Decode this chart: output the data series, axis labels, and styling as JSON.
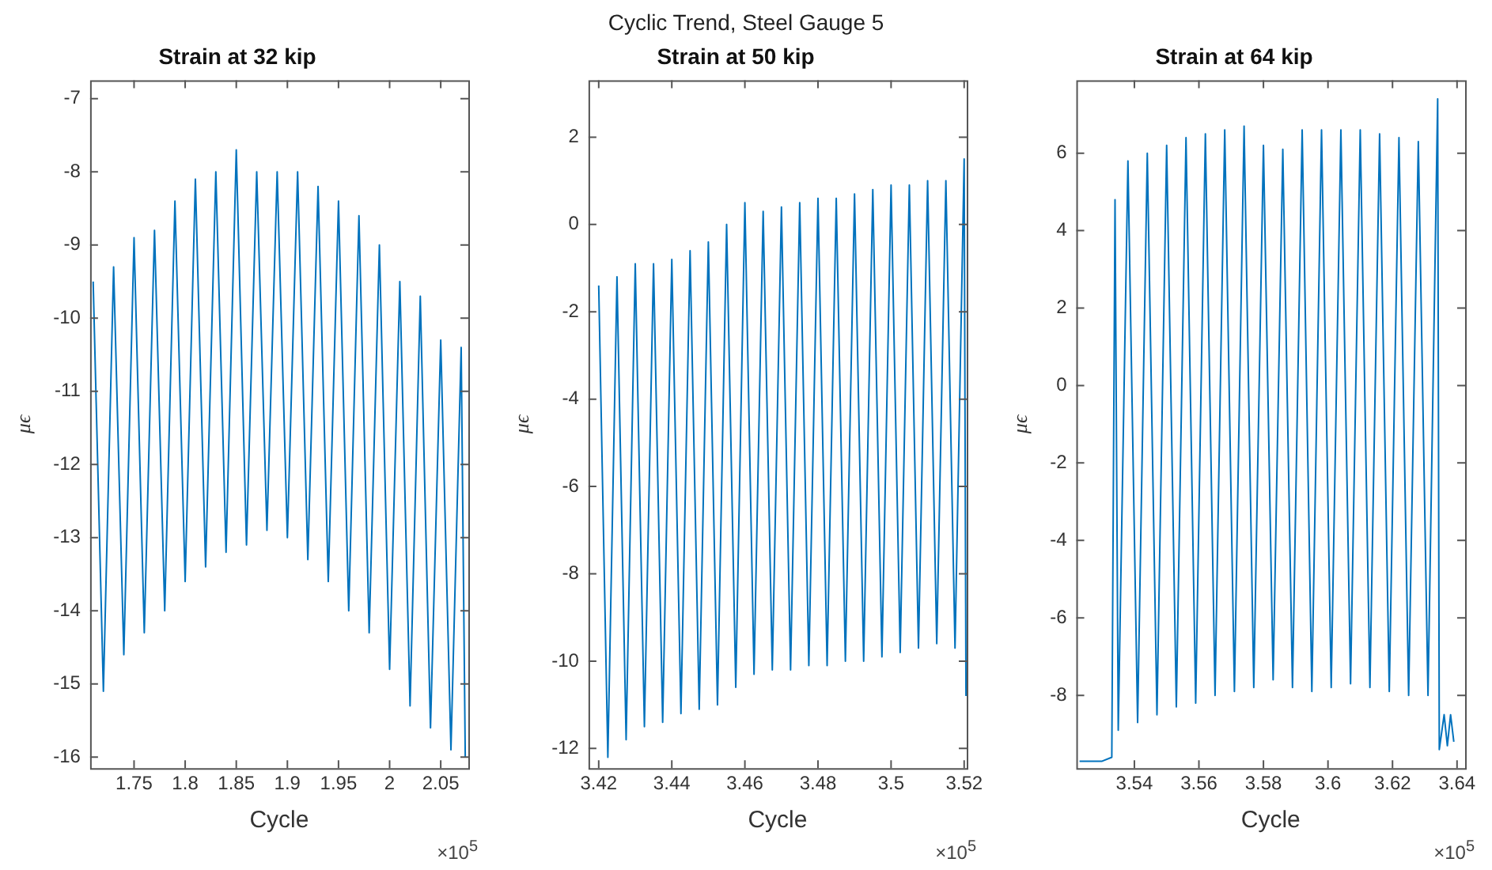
{
  "chart_data": [
    {
      "type": "line",
      "title": "Strain at 32 kip",
      "xlabel": "Cycle",
      "ylabel": "μϵ",
      "annotations": [
        "Cyclic Trend, Steel Gauge 5",
        "×10$^{5}$"
      ],
      "x": [
        1.71,
        1.72,
        1.73,
        1.74,
        1.75,
        1.76,
        1.77,
        1.78,
        1.79,
        1.8,
        1.81,
        1.82,
        1.83,
        1.84,
        1.85,
        1.86,
        1.87,
        1.88,
        1.89,
        1.9,
        1.91,
        1.92,
        1.93,
        1.94,
        1.95,
        1.96,
        1.97,
        1.98,
        1.99,
        2.0,
        2.01,
        2.02,
        2.03,
        2.04,
        2.05,
        2.06,
        2.07,
        2.074
      ],
      "series": [
        {
          "color": "#0072bd",
          "values": [
            -9.5,
            -15.1,
            -9.3,
            -14.6,
            -8.9,
            -14.3,
            -8.8,
            -14.0,
            -8.4,
            -13.6,
            -8.1,
            -13.4,
            -8.0,
            -13.2,
            -7.7,
            -13.1,
            -8.0,
            -12.9,
            -8.0,
            -13.0,
            -8.0,
            -13.3,
            -8.2,
            -13.6,
            -8.4,
            -14.0,
            -8.6,
            -14.3,
            -9.0,
            -14.8,
            -9.5,
            -15.3,
            -9.7,
            -15.6,
            -10.3,
            -15.9,
            -10.4,
            -16.0
          ]
        }
      ],
      "xlim": [
        1.707,
        2.077
      ],
      "xticks": [
        1.75,
        1.8,
        1.85,
        1.9,
        1.95,
        2,
        2.05
      ],
      "ylim": [
        -16.15,
        -6.75
      ],
      "yticks": [
        -16,
        -15,
        -14,
        -13,
        -12,
        -11,
        -10,
        -9,
        -8,
        -7
      ],
      "grid": false,
      "legend": false,
      "line_style": "solid"
    },
    {
      "type": "line",
      "title": "Strain at 50 kip",
      "xlabel": "Cycle",
      "ylabel": "μϵ",
      "annotations": [
        "×10$^{5}$"
      ],
      "x": [
        3.42,
        3.4225,
        3.425,
        3.4275,
        3.43,
        3.4325,
        3.435,
        3.4375,
        3.44,
        3.4425,
        3.445,
        3.4475,
        3.45,
        3.4525,
        3.455,
        3.4575,
        3.46,
        3.4625,
        3.465,
        3.4675,
        3.47,
        3.4725,
        3.475,
        3.4775,
        3.48,
        3.4825,
        3.485,
        3.4875,
        3.49,
        3.4925,
        3.495,
        3.4975,
        3.5,
        3.5025,
        3.505,
        3.5075,
        3.51,
        3.5125,
        3.515,
        3.5175,
        3.52,
        3.5205
      ],
      "series": [
        {
          "color": "#0072bd",
          "values": [
            -1.4,
            -12.2,
            -1.2,
            -11.8,
            -0.9,
            -11.5,
            -0.9,
            -11.4,
            -0.8,
            -11.2,
            -0.6,
            -11.1,
            -0.4,
            -11.0,
            0.0,
            -10.6,
            0.5,
            -10.3,
            0.3,
            -10.2,
            0.4,
            -10.2,
            0.5,
            -10.1,
            0.6,
            -10.1,
            0.6,
            -10.0,
            0.7,
            -10.0,
            0.8,
            -9.9,
            0.9,
            -9.8,
            0.9,
            -9.7,
            1.0,
            -9.6,
            1.0,
            -9.7,
            1.5,
            -10.8
          ]
        }
      ],
      "xlim": [
        3.4172,
        3.5207
      ],
      "xticks": [
        3.42,
        3.44,
        3.46,
        3.48,
        3.5,
        3.52
      ],
      "ylim": [
        -12.45,
        3.3
      ],
      "yticks": [
        -12,
        -10,
        -8,
        -6,
        -4,
        -2,
        0,
        2
      ],
      "grid": false,
      "legend": false,
      "line_style": "solid"
    },
    {
      "type": "line",
      "title": "Strain at 64 kip",
      "xlabel": "Cycle",
      "ylabel": "μϵ",
      "annotations": [
        "×10$^{5}$"
      ],
      "x": [
        3.523,
        3.53,
        3.533,
        3.534,
        3.535,
        3.538,
        3.541,
        3.544,
        3.547,
        3.55,
        3.553,
        3.556,
        3.559,
        3.562,
        3.565,
        3.568,
        3.571,
        3.574,
        3.577,
        3.58,
        3.583,
        3.586,
        3.589,
        3.592,
        3.595,
        3.598,
        3.601,
        3.604,
        3.607,
        3.61,
        3.613,
        3.616,
        3.619,
        3.622,
        3.625,
        3.628,
        3.631,
        3.634,
        3.6345,
        3.636,
        3.637,
        3.638,
        3.639
      ],
      "series": [
        {
          "color": "#0072bd",
          "values": [
            -9.7,
            -9.7,
            -9.6,
            4.8,
            -8.9,
            5.8,
            -8.7,
            6.0,
            -8.5,
            6.2,
            -8.3,
            6.4,
            -8.2,
            6.5,
            -8.0,
            6.6,
            -7.9,
            6.7,
            -7.8,
            6.2,
            -7.6,
            6.1,
            -7.8,
            6.6,
            -7.9,
            6.6,
            -7.8,
            6.6,
            -7.7,
            6.6,
            -7.8,
            6.5,
            -7.9,
            6.4,
            -8.0,
            6.3,
            -8.0,
            7.4,
            -9.4,
            -8.5,
            -9.3,
            -8.5,
            -9.2
          ]
        }
      ],
      "xlim": [
        3.522,
        3.6425
      ],
      "xticks": [
        3.54,
        3.56,
        3.58,
        3.6,
        3.62,
        3.64
      ],
      "ylim": [
        -9.88,
        7.88
      ],
      "yticks": [
        -8,
        -6,
        -4,
        -2,
        0,
        2,
        4,
        6
      ],
      "grid": false,
      "legend": false,
      "line_style": "solid"
    }
  ]
}
